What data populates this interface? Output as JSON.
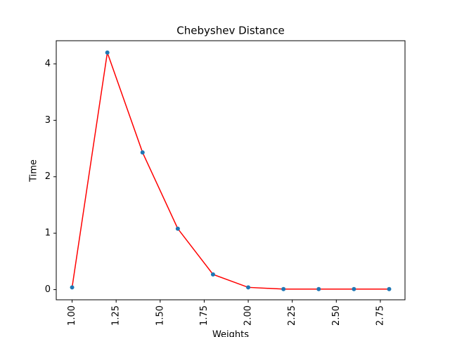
{
  "chart_data": {
    "type": "line",
    "title": "Chebyshev Distance",
    "x_label": "Weights",
    "y_label": "Time",
    "x": [
      1.0,
      1.2,
      1.4,
      1.6,
      1.8,
      2.0,
      2.2,
      2.4,
      2.6,
      2.8
    ],
    "series": [
      {
        "line_color": "#ff0000",
        "marker_color": "#1f77b4",
        "values": [
          0.04,
          4.2,
          2.43,
          1.08,
          0.27,
          0.04,
          0.01,
          0.01,
          0.01,
          0.01
        ]
      }
    ],
    "xlim": [
      0.91,
      2.89
    ],
    "ylim": [
      -0.18,
      4.41
    ],
    "xticks": [
      {
        "value": 1.0,
        "label": "1.00"
      },
      {
        "value": 1.25,
        "label": "1.25"
      },
      {
        "value": 1.5,
        "label": "1.50"
      },
      {
        "value": 1.75,
        "label": "1.75"
      },
      {
        "value": 2.0,
        "label": "2.00"
      },
      {
        "value": 2.25,
        "label": "2.25"
      },
      {
        "value": 2.5,
        "label": "2.50"
      },
      {
        "value": 2.75,
        "label": "2.75"
      }
    ],
    "yticks": [
      0,
      1,
      2,
      3,
      4
    ],
    "grid": false
  }
}
